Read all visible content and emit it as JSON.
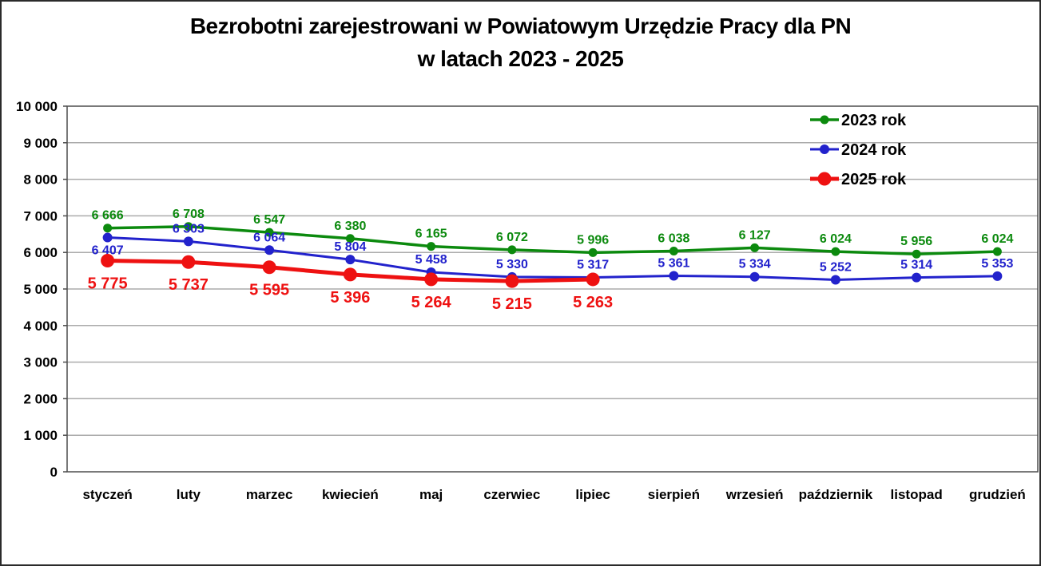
{
  "title": {
    "line1": "Bezrobotni zarejestrowani w Powiatowym Urzędzie Pracy dla PN",
    "line2": "w latach 2023 - 2025"
  },
  "colors": {
    "series_2023": "#0c8a0e",
    "series_2024": "#2222cc",
    "series_2025": "#ee1111",
    "gridline": "#ababab",
    "plot_border": "#4d4d4d",
    "text": "#000000"
  },
  "chart_data": {
    "type": "line",
    "title": "Bezrobotni zarejestrowani w Powiatowym Urzędzie Pracy dla PN w latach 2023 - 2025",
    "categories": [
      "styczeń",
      "luty",
      "marzec",
      "kwiecień",
      "maj",
      "czerwiec",
      "lipiec",
      "sierpień",
      "wrzesień",
      "październik",
      "listopad",
      "grudzień"
    ],
    "series": [
      {
        "name": "2023 rok",
        "color": "#0c8a0e",
        "values": [
          6666,
          6708,
          6547,
          6380,
          6165,
          6072,
          5996,
          6038,
          6127,
          6024,
          5956,
          6024
        ]
      },
      {
        "name": "2024 rok",
        "color": "#2222cc",
        "values": [
          6407,
          6303,
          6064,
          5804,
          5458,
          5330,
          5317,
          5361,
          5334,
          5252,
          5314,
          5353
        ]
      },
      {
        "name": "2025 rok",
        "color": "#ee1111",
        "values": [
          5775,
          5737,
          5595,
          5396,
          5264,
          5215,
          5263
        ]
      }
    ],
    "data_labels": {
      "2023 rok": [
        "6 666",
        "6 708",
        "6 547",
        "6 380",
        "6 165",
        "6 072",
        "5 996",
        "6 038",
        "6 127",
        "6 024",
        "5 956",
        "6 024"
      ],
      "2024 rok": [
        "6 407",
        "6 303",
        "6 064",
        "5 804",
        "5 458",
        "5 330",
        "5 317",
        "5 361",
        "5 334",
        "5 252",
        "5 314",
        "5 353"
      ],
      "2025 rok": [
        "5 775",
        "5 737",
        "5 595",
        "5 396",
        "5 264",
        "5 215",
        "5 263"
      ]
    },
    "xlabel": "",
    "ylabel": "",
    "ylim": [
      0,
      10000
    ],
    "ytick_step": 1000,
    "ytick_labels": [
      "0",
      "1 000",
      "2 000",
      "3 000",
      "4 000",
      "5 000",
      "6 000",
      "7 000",
      "8 000",
      "9 000",
      "10 000"
    ],
    "grid": true,
    "legend_position": "top-right"
  }
}
